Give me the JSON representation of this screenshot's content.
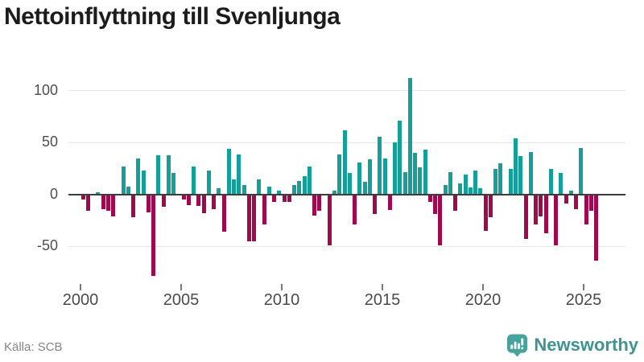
{
  "header": {
    "title": "Nettoinflyttning till Svenljunga"
  },
  "chart_data": {
    "type": "bar",
    "title": "Nettoinflyttning till Svenljunga",
    "frequency": "quarterly",
    "start_period": "2000 Q1",
    "end_period": "2025 Q3",
    "values": [
      -4,
      -15,
      0,
      2,
      -13,
      -15,
      -20,
      0,
      27,
      8,
      -21,
      35,
      23,
      -16,
      -77,
      38,
      -11,
      38,
      21,
      0,
      -4,
      -9,
      27,
      -10,
      -17,
      23,
      -13,
      6,
      -35,
      44,
      15,
      39,
      9,
      -44,
      -44,
      15,
      -28,
      8,
      -6,
      4,
      -6,
      -6,
      9,
      13,
      18,
      27,
      -19,
      -15,
      0,
      -48,
      4,
      39,
      62,
      21,
      -28,
      31,
      12,
      34,
      -18,
      56,
      35,
      -14,
      50,
      71,
      22,
      112,
      40,
      26,
      43,
      -6,
      -18,
      -48,
      9,
      22,
      -15,
      11,
      19,
      7,
      23,
      6,
      -34,
      -21,
      25,
      30,
      0,
      25,
      54,
      37,
      -42,
      41,
      -28,
      -20,
      -36,
      25,
      -48,
      21,
      -8,
      4,
      -13,
      45,
      -28,
      -15,
      -63
    ],
    "x_tick_labels": [
      "2000",
      "2005",
      "2010",
      "2015",
      "2020",
      "2025"
    ],
    "y_tick_labels": [
      "100",
      "50",
      "0",
      "-50"
    ],
    "y_ticks": [
      100,
      50,
      0,
      -50
    ],
    "ylim": [
      -85,
      120
    ],
    "grid": "horizontal",
    "legend": "none",
    "colors": {
      "positive": "#14a099",
      "negative": "#9e0a4d"
    },
    "source": "Källa: SCB"
  },
  "logo": {
    "text": "Newsworthy",
    "icon": "newsworthy-speech-bubble-barchart-icon",
    "teal": "#47a19c"
  }
}
